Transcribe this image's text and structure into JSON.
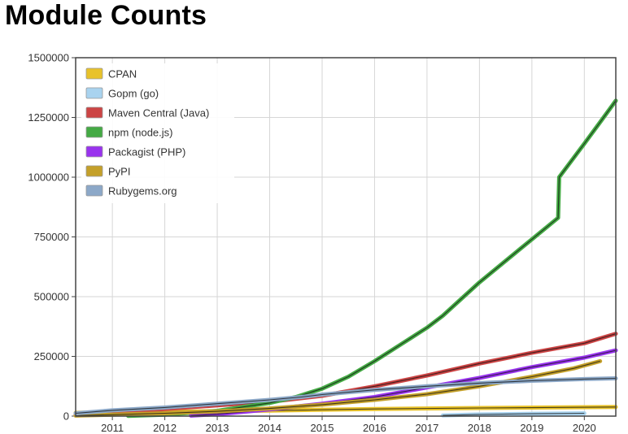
{
  "page": {
    "title": "Module Counts"
  },
  "chart_data": {
    "type": "line",
    "title": "Module Counts",
    "xlabel": "",
    "ylabel": "",
    "xlim": [
      2010.3,
      2020.6
    ],
    "ylim": [
      0,
      1500000
    ],
    "x_ticks": [
      "2011",
      "2012",
      "2013",
      "2014",
      "2015",
      "2016",
      "2017",
      "2018",
      "2019",
      "2020"
    ],
    "y_ticks": [
      "0",
      "250000",
      "500000",
      "750000",
      "1000000",
      "1250000",
      "1500000"
    ],
    "grid": true,
    "legend_position": "top-left",
    "series": [
      {
        "name": "CPAN",
        "color": "#e8c22a",
        "points": [
          [
            2010.3,
            14000
          ],
          [
            2012,
            18000
          ],
          [
            2014,
            23000
          ],
          [
            2016,
            30000
          ],
          [
            2018,
            34000
          ],
          [
            2020.6,
            38000
          ]
        ]
      },
      {
        "name": "Gopm (go)",
        "color": "#a9d3ef",
        "points": [
          [
            2017.3,
            3000
          ],
          [
            2018.0,
            7000
          ],
          [
            2019.0,
            10000
          ],
          [
            2020.0,
            12000
          ]
        ]
      },
      {
        "name": "Maven Central (Java)",
        "color": "#cc4444",
        "points": [
          [
            2010.3,
            6000
          ],
          [
            2011,
            18000
          ],
          [
            2012,
            30000
          ],
          [
            2013,
            45000
          ],
          [
            2014,
            60000
          ],
          [
            2015,
            85000
          ],
          [
            2016,
            125000
          ],
          [
            2017,
            170000
          ],
          [
            2018,
            220000
          ],
          [
            2019,
            265000
          ],
          [
            2020,
            305000
          ],
          [
            2020.6,
            345000
          ]
        ]
      },
      {
        "name": "npm (node.js)",
        "color": "#44aa44",
        "points": [
          [
            2011.3,
            1000
          ],
          [
            2012,
            6000
          ],
          [
            2013,
            22000
          ],
          [
            2014,
            55000
          ],
          [
            2014.5,
            80000
          ],
          [
            2015,
            115000
          ],
          [
            2015.5,
            165000
          ],
          [
            2016,
            230000
          ],
          [
            2016.5,
            300000
          ],
          [
            2017,
            370000
          ],
          [
            2017.3,
            420000
          ],
          [
            2017.6,
            480000
          ],
          [
            2018,
            560000
          ],
          [
            2018.5,
            650000
          ],
          [
            2019,
            740000
          ],
          [
            2019.5,
            830000
          ],
          [
            2019.52,
            1000000
          ],
          [
            2020,
            1140000
          ],
          [
            2020.3,
            1230000
          ],
          [
            2020.6,
            1320000
          ]
        ]
      },
      {
        "name": "Packagist (PHP)",
        "color": "#9933ee",
        "points": [
          [
            2012.5,
            2000
          ],
          [
            2013,
            8000
          ],
          [
            2014,
            28000
          ],
          [
            2015,
            52000
          ],
          [
            2016,
            80000
          ],
          [
            2017,
            120000
          ],
          [
            2018,
            160000
          ],
          [
            2019,
            205000
          ],
          [
            2020,
            245000
          ],
          [
            2020.6,
            275000
          ]
        ]
      },
      {
        "name": "PyPI",
        "color": "#c4a02a",
        "points": [
          [
            2010.3,
            2000
          ],
          [
            2011,
            6000
          ],
          [
            2012,
            12000
          ],
          [
            2013,
            20000
          ],
          [
            2014,
            32000
          ],
          [
            2015,
            48000
          ],
          [
            2016,
            68000
          ],
          [
            2017,
            92000
          ],
          [
            2018,
            125000
          ],
          [
            2019,
            165000
          ],
          [
            2019.8,
            200000
          ],
          [
            2020.3,
            230000
          ]
        ]
      },
      {
        "name": "Rubygems.org",
        "color": "#8ca8c8",
        "points": [
          [
            2010.3,
            12000
          ],
          [
            2011,
            24000
          ],
          [
            2012,
            36000
          ],
          [
            2013,
            52000
          ],
          [
            2014,
            68000
          ],
          [
            2014.6,
            80000
          ],
          [
            2015,
            90000
          ],
          [
            2016,
            110000
          ],
          [
            2017,
            125000
          ],
          [
            2018,
            138000
          ],
          [
            2019,
            148000
          ],
          [
            2020,
            155000
          ],
          [
            2020.6,
            158000
          ]
        ]
      }
    ]
  }
}
